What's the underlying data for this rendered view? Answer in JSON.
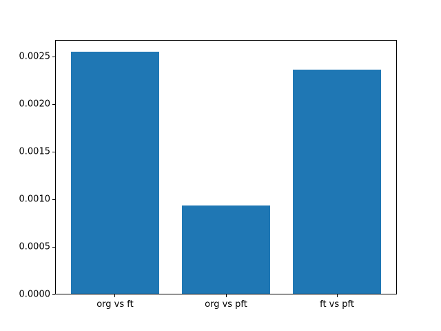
{
  "figure": {
    "background_color": "#ffffff",
    "axes_border_color": "#000000",
    "tick_color": "#000000"
  },
  "chart_data": {
    "type": "bar",
    "categories": [
      "org vs ft",
      "org vs pft",
      "ft vs pft"
    ],
    "values": [
      0.00255,
      0.00093,
      0.00236
    ],
    "title": "",
    "xlabel": "",
    "ylabel": "",
    "ylim": [
      0,
      0.0026775
    ],
    "xlim": [
      -0.54,
      2.54
    ],
    "bar_width": 0.8,
    "bar_color": "#1f77b4",
    "yticks": [
      {
        "value": 0.0,
        "label": "0.0000"
      },
      {
        "value": 0.0005,
        "label": "0.0005"
      },
      {
        "value": 0.001,
        "label": "0.0010"
      },
      {
        "value": 0.0015,
        "label": "0.0015"
      },
      {
        "value": 0.002,
        "label": "0.0020"
      },
      {
        "value": 0.0025,
        "label": "0.0025"
      }
    ],
    "grid": false,
    "legend": null
  }
}
